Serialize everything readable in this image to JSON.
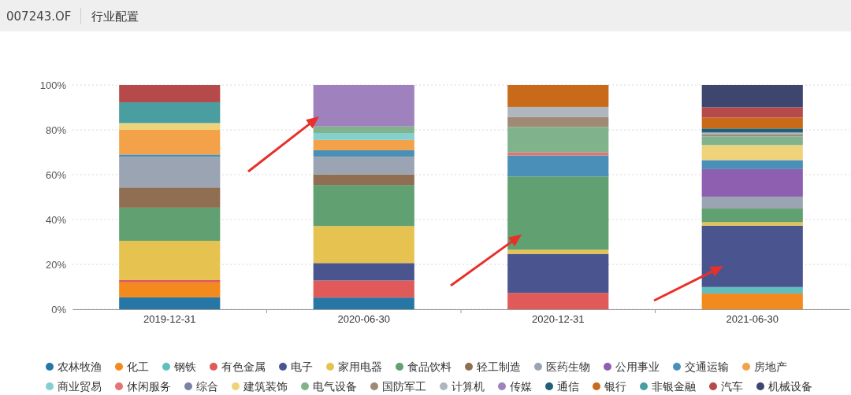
{
  "chart_data": {
    "type": "bar",
    "title": "行业配置",
    "subtitle": "007243.OF",
    "stacked": true,
    "grid": "y",
    "legend": "bottom",
    "marker": "circle",
    "categories": [
      "2019-12-31",
      "2020-06-30",
      "2020-12-31",
      "2021-06-30"
    ],
    "ylim": [
      0,
      100
    ],
    "yticks": [
      {
        "value": 0,
        "label": "0%"
      },
      {
        "value": 20,
        "label": "20%"
      },
      {
        "value": 40,
        "label": "40%"
      },
      {
        "value": 60,
        "label": "60%"
      },
      {
        "value": 80,
        "label": "80%"
      },
      {
        "value": 100,
        "label": "100%"
      }
    ],
    "series": [
      {
        "name": "农林牧渔",
        "color": "#2677a5",
        "values": [
          5.3,
          5.2,
          null,
          null
        ]
      },
      {
        "name": "化工",
        "color": "#f28a1e",
        "values": [
          6.7,
          null,
          null,
          7.0
        ]
      },
      {
        "name": "钢铁",
        "color": "#5fbfbf",
        "values": [
          null,
          null,
          null,
          2.9
        ]
      },
      {
        "name": "有色金属",
        "color": "#e05a5a",
        "values": [
          1.0,
          7.6,
          7.3,
          null
        ]
      },
      {
        "name": "电子",
        "color": "#4a5590",
        "values": [
          null,
          7.8,
          17.4,
          27.4
        ]
      },
      {
        "name": "家用电器",
        "color": "#e6c350",
        "values": [
          17.5,
          16.5,
          1.8,
          1.5
        ]
      },
      {
        "name": "食品饮料",
        "color": "#61a070",
        "values": [
          14.8,
          18.3,
          32.7,
          6.1
        ]
      },
      {
        "name": "轻工制造",
        "color": "#8f6e52",
        "values": [
          9.0,
          4.7,
          null,
          null
        ]
      },
      {
        "name": "医药生物",
        "color": "#9aa4b2",
        "values": [
          13.7,
          7.9,
          null,
          5.3
        ]
      },
      {
        "name": "公用事业",
        "color": "#8e5eb0",
        "values": [
          null,
          null,
          null,
          12.3
        ]
      },
      {
        "name": "交通运输",
        "color": "#4a8fb8",
        "values": [
          1.0,
          2.9,
          9.4,
          4.0
        ]
      },
      {
        "name": "房地产",
        "color": "#f4a24a",
        "values": [
          11.0,
          4.6,
          null,
          null
        ]
      },
      {
        "name": "商业贸易",
        "color": "#84d0cf",
        "values": [
          null,
          3.1,
          null,
          null
        ]
      },
      {
        "name": "休闲服务",
        "color": "#e57373",
        "values": [
          null,
          null,
          1.3,
          null
        ]
      },
      {
        "name": "综合",
        "color": "#7a82a8",
        "values": [
          null,
          null,
          null,
          null
        ]
      },
      {
        "name": "建筑装饰",
        "color": "#efd37a",
        "values": [
          3.0,
          null,
          null,
          6.7
        ]
      },
      {
        "name": "电气设备",
        "color": "#80b38c",
        "values": [
          null,
          2.9,
          11.4,
          3.9
        ]
      },
      {
        "name": "国防军工",
        "color": "#a08a76",
        "values": [
          null,
          null,
          4.5,
          0.8
        ]
      },
      {
        "name": "计算机",
        "color": "#b0b6be",
        "values": [
          null,
          null,
          4.4,
          0.9
        ]
      },
      {
        "name": "传媒",
        "color": "#9f82bd",
        "values": [
          null,
          18.5,
          null,
          null
        ]
      },
      {
        "name": "通信",
        "color": "#1f5f78",
        "values": [
          null,
          null,
          null,
          1.8
        ]
      },
      {
        "name": "银行",
        "color": "#c96a1a",
        "values": [
          null,
          null,
          9.8,
          4.9
        ]
      },
      {
        "name": "非银金融",
        "color": "#4a9ea0",
        "values": [
          9.3,
          null,
          null,
          null
        ]
      },
      {
        "name": "汽车",
        "color": "#b64a4a",
        "values": [
          7.7,
          null,
          null,
          4.5
        ]
      },
      {
        "name": "机械设备",
        "color": "#3e4670",
        "values": [
          null,
          null,
          null,
          10.0
        ]
      }
    ]
  }
}
